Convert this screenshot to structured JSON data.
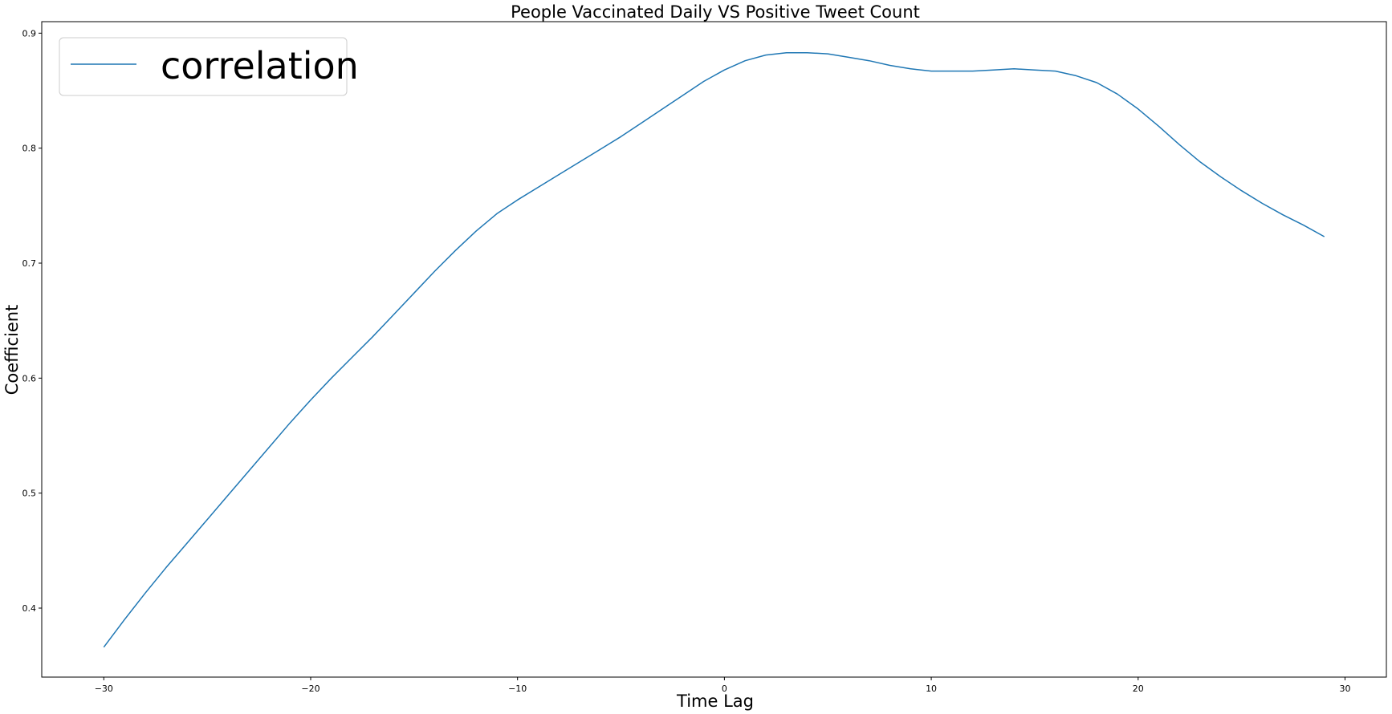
{
  "chart_data": {
    "type": "line",
    "title": "People Vaccinated Daily VS Positive Tweet Count",
    "xlabel": "Time Lag",
    "ylabel": "Coefficient",
    "xlim": [
      -33,
      32
    ],
    "ylim": [
      0.34,
      0.91
    ],
    "xticks": [
      -30,
      -20,
      -10,
      0,
      10,
      20,
      30
    ],
    "xtick_labels": [
      "−30",
      "−20",
      "−10",
      "0",
      "10",
      "20",
      "30"
    ],
    "yticks": [
      0.4,
      0.5,
      0.6,
      0.7,
      0.8,
      0.9
    ],
    "ytick_labels": [
      "0.4",
      "0.5",
      "0.6",
      "0.7",
      "0.8",
      "0.9"
    ],
    "grid": false,
    "legend_position": "top-left",
    "series": [
      {
        "name": "correlation",
        "color": "#1f77b4",
        "x": [
          -30,
          -29,
          -28,
          -27,
          -26,
          -25,
          -24,
          -23,
          -22,
          -21,
          -20,
          -19,
          -18,
          -17,
          -16,
          -15,
          -14,
          -13,
          -12,
          -11,
          -10,
          -9,
          -8,
          -7,
          -6,
          -5,
          -4,
          -3,
          -2,
          -1,
          0,
          1,
          2,
          3,
          4,
          5,
          6,
          7,
          8,
          9,
          10,
          11,
          12,
          13,
          14,
          15,
          16,
          17,
          18,
          19,
          20,
          21,
          22,
          23,
          24,
          25,
          26,
          27,
          28,
          29
        ],
        "y": [
          0.366,
          0.39,
          0.413,
          0.435,
          0.456,
          0.477,
          0.498,
          0.519,
          0.54,
          0.561,
          0.581,
          0.6,
          0.618,
          0.636,
          0.655,
          0.674,
          0.693,
          0.711,
          0.728,
          0.743,
          0.755,
          0.766,
          0.777,
          0.788,
          0.799,
          0.81,
          0.822,
          0.834,
          0.846,
          0.858,
          0.868,
          0.876,
          0.881,
          0.883,
          0.883,
          0.882,
          0.879,
          0.876,
          0.872,
          0.869,
          0.867,
          0.867,
          0.867,
          0.868,
          0.869,
          0.868,
          0.867,
          0.863,
          0.857,
          0.847,
          0.834,
          0.819,
          0.803,
          0.788,
          0.775,
          0.763,
          0.752,
          0.742,
          0.733,
          0.723
        ]
      }
    ]
  }
}
